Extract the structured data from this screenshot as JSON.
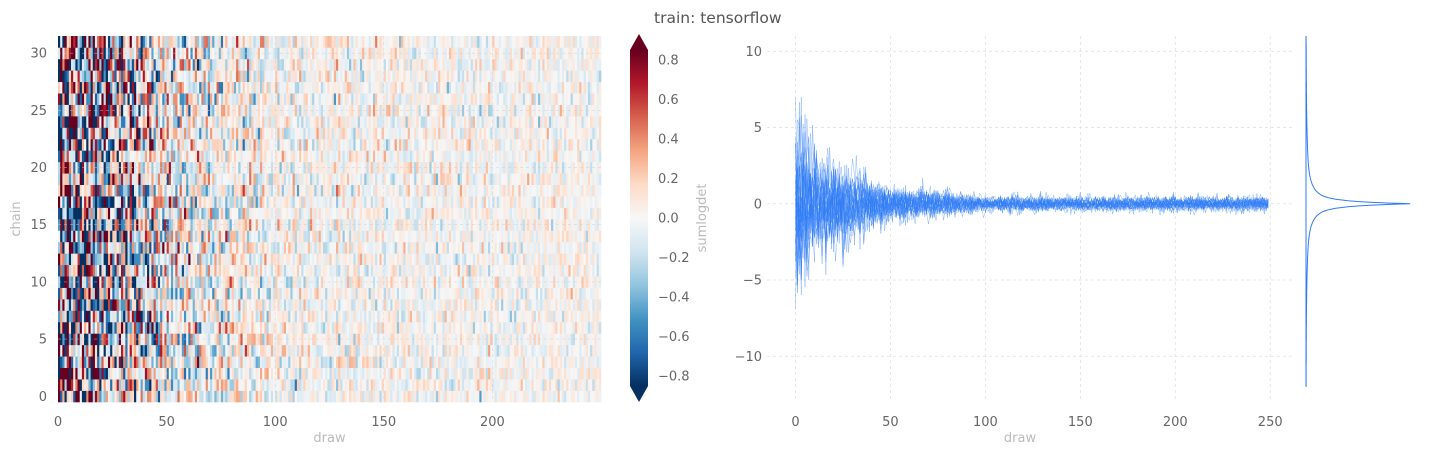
{
  "title": "train: tensorflow",
  "chart_data": [
    {
      "type": "heatmap",
      "xlabel": "draw",
      "ylabel": "chain",
      "xlim": [
        0,
        250
      ],
      "ylim": [
        0,
        32
      ],
      "x_ticks": [
        "0",
        "50",
        "100",
        "150",
        "200"
      ],
      "y_ticks": [
        "0",
        "5",
        "10",
        "15",
        "20",
        "25",
        "30"
      ],
      "colorbar": {
        "label": "sumlogdet",
        "cmap": "RdBu_r",
        "vmin": -0.85,
        "vmax": 0.85,
        "extend": "both",
        "ticks": [
          "−0.8",
          "−0.6",
          "−0.4",
          "−0.2",
          "0.0",
          "0.2",
          "0.4",
          "0.6",
          "0.8"
        ],
        "colors": {
          "low": "#053061",
          "mid": "#f7f7f7",
          "high": "#67001f"
        }
      },
      "n_draws": 250,
      "n_chains": 32,
      "amplitude_envelope": {
        "draw": [
          0,
          50,
          100,
          250
        ],
        "std": [
          0.95,
          0.35,
          0.15,
          0.1
        ]
      }
    },
    {
      "type": "line",
      "xlabel": "",
      "ylabel": "",
      "xlim": [
        -15,
        262
      ],
      "ylim": [
        -13,
        11
      ],
      "x_ticks": [
        "0",
        "50",
        "100",
        "150",
        "200",
        "250"
      ],
      "y_ticks": [
        "−10",
        "−5",
        "0",
        "5",
        "10"
      ],
      "color": "#2f7bf5",
      "n_chains": 32,
      "n_draws": 250,
      "amplitude_envelope": {
        "draw": [
          0,
          10,
          50,
          100,
          250
        ],
        "std": [
          3.0,
          1.6,
          0.55,
          0.25,
          0.22
        ]
      },
      "marginal": {
        "type": "kde",
        "center": 0,
        "range": [
          -12,
          11
        ]
      }
    }
  ],
  "shared": {
    "xlabel": "draw"
  }
}
